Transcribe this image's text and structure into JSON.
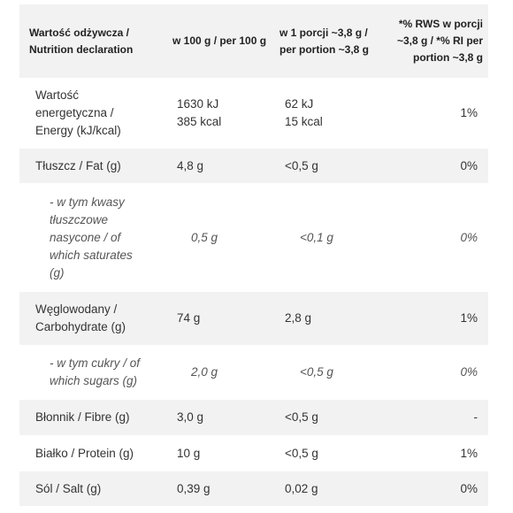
{
  "table": {
    "header": [
      "Wartość odżywcza / Nutrition declaration",
      "w 100 g / per 100 g",
      "w 1 porcji ~3,8 g / per portion ~3,8 g",
      "*% RWS w porcji ~3,8 g / *% RI per portion ~3,8 g"
    ],
    "rows": [
      [
        [
          "Wartość",
          "energetyczna /",
          "Energy (kJ/kcal)"
        ],
        [
          "1630 kJ",
          "385 kcal"
        ],
        [
          "62 kJ",
          "15 kcal"
        ],
        "1%"
      ],
      [
        "Tłuszcz / Fat (g)",
        "4,8 g",
        "<0,5 g",
        "0%"
      ],
      [
        [
          "- w tym kwasy",
          "tłuszczowe",
          "nasycone / of",
          "which saturates",
          "(g)"
        ],
        "0,5 g",
        "<0,1 g",
        "0%"
      ],
      [
        [
          "Węglowodany /",
          "Carbohydrate (g)"
        ],
        "74 g",
        "2,8 g",
        "1%"
      ],
      [
        [
          "- w tym cukry / of",
          "which sugars (g)"
        ],
        "2,0 g",
        "<0,5 g",
        "0%"
      ],
      [
        "Błonnik / Fibre (g)",
        "3,0 g",
        "<0,5 g",
        "-"
      ],
      [
        "Białko / Protein (g)",
        "10 g",
        "<0,5 g",
        "1%"
      ],
      [
        "Sól / Salt (g)",
        "0,39 g",
        "0,02 g",
        "0%"
      ]
    ]
  }
}
